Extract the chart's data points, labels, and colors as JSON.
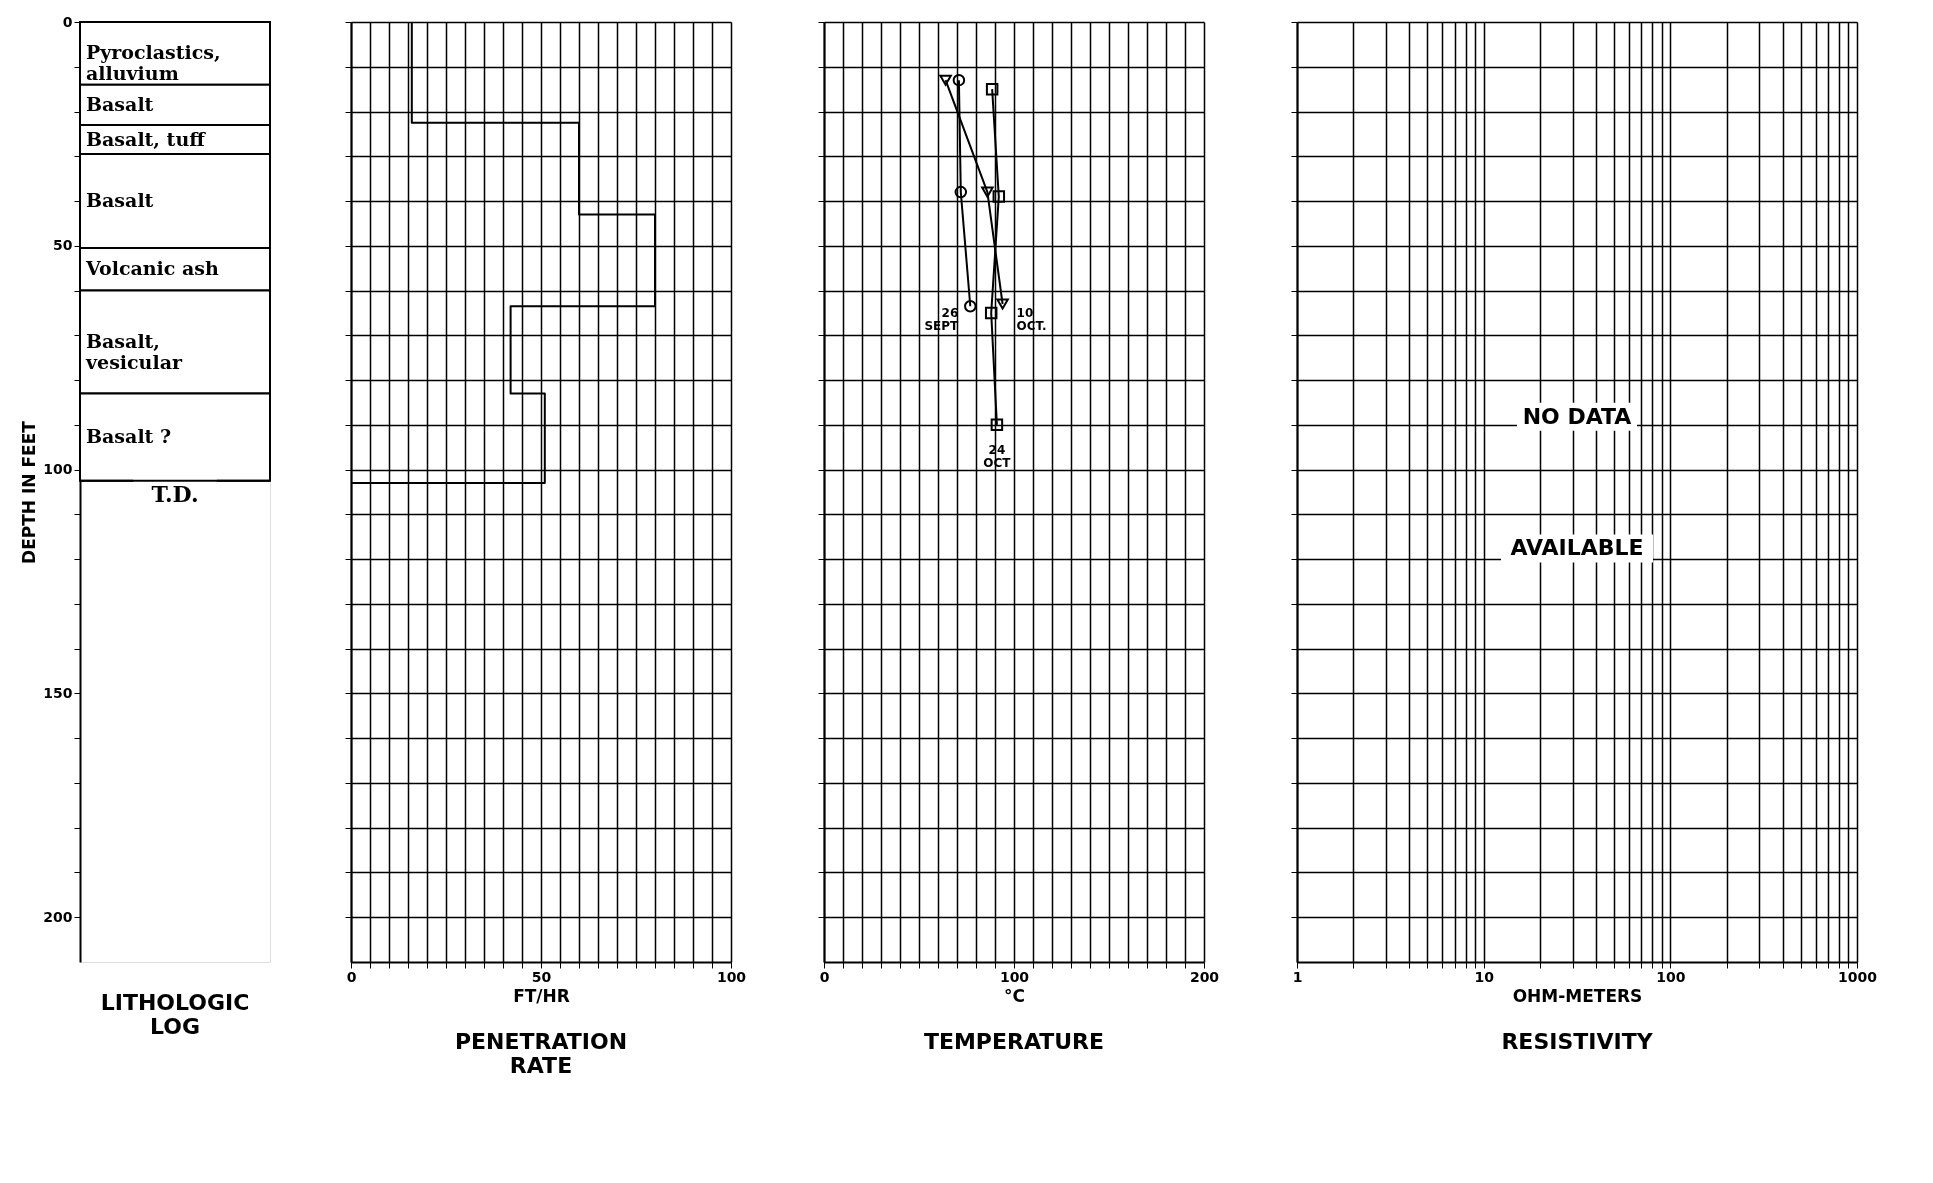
{
  "chart_data": [
    {
      "type": "bar",
      "stacked": true,
      "title": "LITHOLOGIC\nLOG",
      "ylabel": "DEPTH IN FEET",
      "categories": [
        null
      ],
      "ylim": [
        210,
        0
      ],
      "tick_labels": "y",
      "yticks": [
        0,
        {
          "value": 10,
          "label": null
        },
        {
          "value": 20,
          "label": null
        },
        {
          "value": 30,
          "label": null
        },
        {
          "value": 40,
          "label": null
        },
        50,
        {
          "value": 60,
          "label": null
        },
        {
          "value": 70,
          "label": null
        },
        {
          "value": 80,
          "label": null
        },
        {
          "value": 90,
          "label": null
        },
        100,
        {
          "value": 110,
          "label": null
        },
        {
          "value": 120,
          "label": null
        },
        {
          "value": 130,
          "label": null
        },
        {
          "value": 140,
          "label": null
        },
        150,
        {
          "value": 160,
          "label": null
        },
        {
          "value": 170,
          "label": null
        },
        {
          "value": 180,
          "label": null
        },
        {
          "value": 190,
          "label": null
        },
        200
      ],
      "series": [
        {
          "name": "Pyroclastics,\nalluvium",
          "color": "#ffffff",
          "values": [
            14
          ]
        },
        {
          "name": "Basalt",
          "color": "#ffffff",
          "values": [
            9
          ]
        },
        {
          "name": "Basalt, tuff",
          "color": "#ffffff",
          "values": [
            6.5
          ]
        },
        {
          "name": "Basalt",
          "color": "#ffffff",
          "values": [
            21
          ]
        },
        {
          "name": "Volcanic ash",
          "color": "#ffffff",
          "values": [
            9.5
          ]
        },
        {
          "name": "Basalt,\nvesicular",
          "color": "#ffffff",
          "values": [
            23
          ]
        },
        {
          "name": "Basalt ?",
          "color": "#ffffff",
          "values": [
            19.5
          ]
        }
      ],
      "ref_lines": [
        {
          "axis": "y",
          "value": 102.5,
          "label": "T.D."
        }
      ]
    },
    {
      "type": "step",
      "orientation": "horizontal",
      "title": "PENETRATION\nRATE",
      "xlabel": "FT/HR",
      "xlim": [
        0,
        100
      ],
      "ylim": [
        210,
        0
      ],
      "tick_labels": "x",
      "grid": true,
      "xticks": [
        0,
        {
          "value": 5,
          "label": null
        },
        {
          "value": 10,
          "label": null
        },
        {
          "value": 15,
          "label": null
        },
        {
          "value": 20,
          "label": null
        },
        {
          "value": 25,
          "label": null
        },
        {
          "value": 30,
          "label": null
        },
        {
          "value": 35,
          "label": null
        },
        {
          "value": 40,
          "label": null
        },
        {
          "value": 45,
          "label": null
        },
        50,
        {
          "value": 55,
          "label": null
        },
        {
          "value": 60,
          "label": null
        },
        {
          "value": 65,
          "label": null
        },
        {
          "value": 70,
          "label": null
        },
        {
          "value": 75,
          "label": null
        },
        {
          "value": 80,
          "label": null
        },
        {
          "value": 85,
          "label": null
        },
        {
          "value": 90,
          "label": null
        },
        {
          "value": 95,
          "label": null
        },
        100
      ],
      "yticks": [
        0,
        {
          "value": 10,
          "label": null
        },
        {
          "value": 20,
          "label": null
        },
        {
          "value": 30,
          "label": null
        },
        {
          "value": 40,
          "label": null
        },
        50,
        {
          "value": 60,
          "label": null
        },
        {
          "value": 70,
          "label": null
        },
        {
          "value": 80,
          "label": null
        },
        {
          "value": 90,
          "label": null
        },
        100,
        {
          "value": 110,
          "label": null
        },
        {
          "value": 120,
          "label": null
        },
        {
          "value": 130,
          "label": null
        },
        {
          "value": 140,
          "label": null
        },
        150,
        {
          "value": 160,
          "label": null
        },
        {
          "value": 170,
          "label": null
        },
        {
          "value": 180,
          "label": null
        },
        {
          "value": 190,
          "label": null
        },
        200
      ],
      "series": [
        {
          "color": "#000000",
          "x": [
            0,
            22.5,
            43,
            63.5,
            83,
            103
          ],
          "values": [
            16,
            60,
            80,
            42,
            51,
            0
          ]
        }
      ]
    },
    {
      "type": "line",
      "orientation": "horizontal",
      "title": "TEMPERATURE",
      "xlabel": "°C",
      "xlim": [
        0,
        200
      ],
      "ylim": [
        210,
        0
      ],
      "tick_labels": "x",
      "grid": true,
      "xticks": [
        0,
        {
          "value": 10,
          "label": null
        },
        {
          "value": 20,
          "label": null
        },
        {
          "value": 30,
          "label": null
        },
        {
          "value": 40,
          "label": null
        },
        {
          "value": 50,
          "label": null
        },
        {
          "value": 60,
          "label": null
        },
        {
          "value": 70,
          "label": null
        },
        {
          "value": 80,
          "label": null
        },
        {
          "value": 90,
          "label": null
        },
        100,
        {
          "value": 110,
          "label": null
        },
        {
          "value": 120,
          "label": null
        },
        {
          "value": 130,
          "label": null
        },
        {
          "value": 140,
          "label": null
        },
        {
          "value": 150,
          "label": null
        },
        {
          "value": 160,
          "label": null
        },
        {
          "value": 170,
          "label": null
        },
        {
          "value": 180,
          "label": null
        },
        {
          "value": 190,
          "label": null
        },
        200
      ],
      "yticks": [
        0,
        {
          "value": 10,
          "label": null
        },
        {
          "value": 20,
          "label": null
        },
        {
          "value": 30,
          "label": null
        },
        {
          "value": 40,
          "label": null
        },
        50,
        {
          "value": 60,
          "label": null
        },
        {
          "value": 70,
          "label": null
        },
        {
          "value": 80,
          "label": null
        },
        {
          "value": 90,
          "label": null
        },
        100,
        {
          "value": 110,
          "label": null
        },
        {
          "value": 120,
          "label": null
        },
        {
          "value": 130,
          "label": null
        },
        {
          "value": 140,
          "label": null
        },
        150,
        {
          "value": 160,
          "label": null
        },
        {
          "value": 170,
          "label": null
        },
        {
          "value": 180,
          "label": null
        },
        {
          "value": 190,
          "label": null
        },
        200
      ],
      "series": [
        {
          "name": "26 SEPT",
          "color": "#000000",
          "marker": "circle",
          "x": [
            13,
            38,
            63.5
          ],
          "values": [
            71,
            72,
            77
          ]
        },
        {
          "name": "10 OCT.",
          "color": "#000000",
          "marker": "triangle",
          "x": [
            13,
            38,
            63
          ],
          "values": [
            64,
            86,
            94
          ]
        },
        {
          "name": "24 OCT",
          "color": "#000000",
          "marker": "square",
          "x": [
            15,
            39,
            65,
            90
          ],
          "values": [
            88.5,
            92,
            88,
            91
          ]
        }
      ]
    },
    {
      "type": "line",
      "orientation": "horizontal",
      "title": "RESISTIVITY",
      "xlabel": "OHM-METERS",
      "xlim": [
        1,
        1000
      ],
      "log": "x",
      "ylim": [
        210,
        0
      ],
      "tick_labels": "x",
      "grid": true,
      "xticks": [
        1,
        {
          "value": 2,
          "label": null
        },
        {
          "value": 3,
          "label": null
        },
        {
          "value": 4,
          "label": null
        },
        {
          "value": 5,
          "label": null
        },
        {
          "value": 6,
          "label": null
        },
        {
          "value": 7,
          "label": null
        },
        {
          "value": 8,
          "label": null
        },
        {
          "value": 9,
          "label": null
        },
        10,
        {
          "value": 20,
          "label": null
        },
        {
          "value": 30,
          "label": null
        },
        {
          "value": 40,
          "label": null
        },
        {
          "value": 50,
          "label": null
        },
        {
          "value": 60,
          "label": null
        },
        {
          "value": 70,
          "label": null
        },
        {
          "value": 80,
          "label": null
        },
        {
          "value": 90,
          "label": null
        },
        100,
        {
          "value": 200,
          "label": null
        },
        {
          "value": 300,
          "label": null
        },
        {
          "value": 400,
          "label": null
        },
        {
          "value": 500,
          "label": null
        },
        {
          "value": 600,
          "label": null
        },
        {
          "value": 700,
          "label": null
        },
        {
          "value": 800,
          "label": null
        },
        {
          "value": 900,
          "label": null
        },
        1000
      ],
      "yticks": [
        0,
        {
          "value": 10,
          "label": null
        },
        {
          "value": 20,
          "label": null
        },
        {
          "value": 30,
          "label": null
        },
        {
          "value": 40,
          "label": null
        },
        50,
        {
          "value": 60,
          "label": null
        },
        {
          "value": 70,
          "label": null
        },
        {
          "value": 80,
          "label": null
        },
        {
          "value": 90,
          "label": null
        },
        100,
        {
          "value": 110,
          "label": null
        },
        {
          "value": 120,
          "label": null
        },
        {
          "value": 130,
          "label": null
        },
        {
          "value": 140,
          "label": null
        },
        150,
        {
          "value": 160,
          "label": null
        },
        {
          "value": 170,
          "label": null
        },
        {
          "value": 180,
          "label": null
        },
        {
          "value": 190,
          "label": null
        },
        200
      ],
      "annotations": [
        "NO DATA",
        "AVAILABLE"
      ]
    }
  ]
}
